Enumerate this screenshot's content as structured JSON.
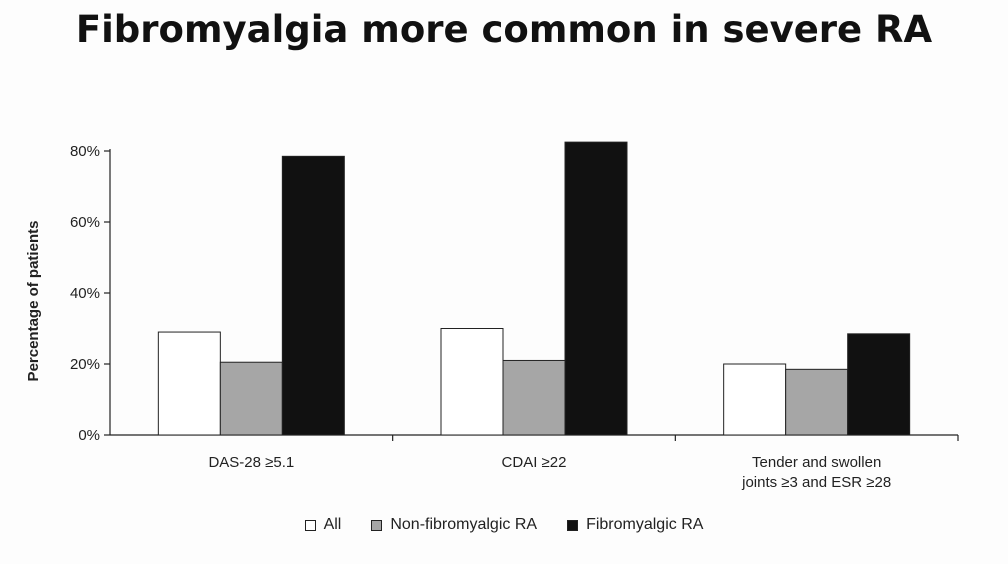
{
  "title": "Fibromyalgia more common in severe RA",
  "chart_data": {
    "type": "bar",
    "categories": [
      [
        "DAS-28 ≥5.1"
      ],
      [
        "CDAI ≥22"
      ],
      [
        "Tender and swollen",
        "joints ≥3 and ESR ≥28"
      ]
    ],
    "series": [
      {
        "name": "All",
        "color": "#ffffff",
        "values": [
          29,
          30,
          20
        ]
      },
      {
        "name": "Non-fibromyalgic RA",
        "color": "#a6a6a6",
        "values": [
          20.5,
          21,
          18.5
        ]
      },
      {
        "name": "Fibromyalgic RA",
        "color": "#111111",
        "values": [
          78.5,
          82.5,
          28.5
        ]
      }
    ],
    "xlabel": "",
    "ylabel": "Percentage of  patients",
    "ylim": [
      0,
      80
    ],
    "yticks": [
      0,
      20,
      40,
      60,
      80
    ],
    "ytick_labels": [
      "0%",
      "20%",
      "40%",
      "60%",
      "80%"
    ],
    "grid": false,
    "legend_position": "bottom"
  }
}
